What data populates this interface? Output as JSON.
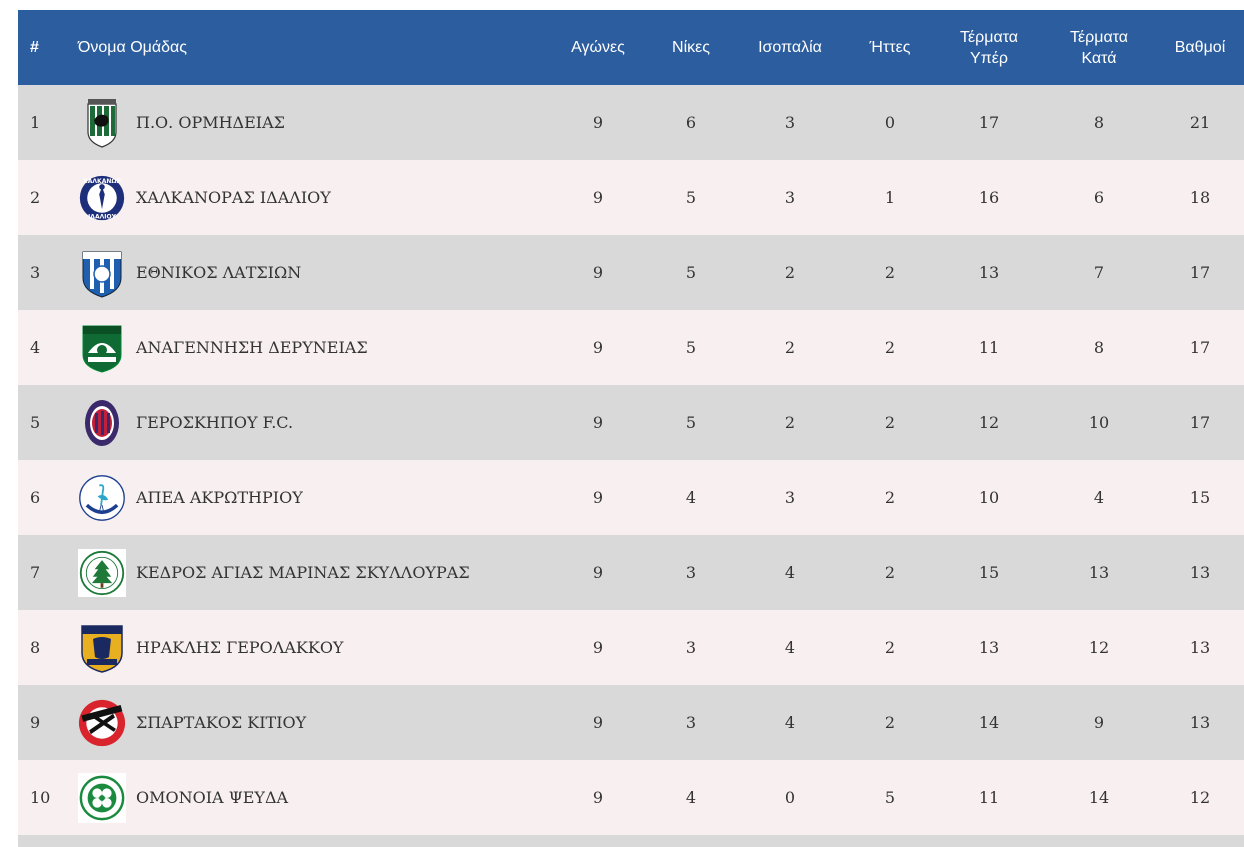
{
  "table": {
    "headers": {
      "rank": "#",
      "team": "Όνομα Ομάδας",
      "played": "Αγώνες",
      "wins": "Νίκες",
      "draws": "Ισοπαλία",
      "losses": "Ήττες",
      "goals_for_line1": "Τέρματα",
      "goals_for_line2": "Υπέρ",
      "goals_against_line1": "Τέρματα",
      "goals_against_line2": "Κατά",
      "points": "Βαθμοί"
    },
    "rows": [
      {
        "rank": "1",
        "team": "Π.Ο. ΟΡΜΗΔΕΙΑΣ",
        "logo": "ormideia-crest-icon",
        "played": "9",
        "wins": "6",
        "draws": "3",
        "losses": "0",
        "gf": "17",
        "ga": "8",
        "pts": "21"
      },
      {
        "rank": "2",
        "team": "ΧΑΛΚΑΝΟΡΑΣ ΙΔΑΛΙΟΥ",
        "logo": "chalkanoras-crest-icon",
        "logo_text_top": "ΧΑΛΚΑΝΩΡ",
        "logo_text_bottom": "ΙΔΑΛΙΟΥ",
        "played": "9",
        "wins": "5",
        "draws": "3",
        "losses": "1",
        "gf": "16",
        "ga": "6",
        "pts": "18"
      },
      {
        "rank": "3",
        "team": "ΕΘΝΙΚΟΣ ΛΑΤΣΙΩΝ",
        "logo": "ethnikos-crest-icon",
        "played": "9",
        "wins": "5",
        "draws": "2",
        "losses": "2",
        "gf": "13",
        "ga": "7",
        "pts": "17"
      },
      {
        "rank": "4",
        "team": "ΑΝΑΓΕΝΝΗΣΗ ΔΕΡΥΝΕΙΑΣ",
        "logo": "anagennisi-crest-icon",
        "played": "9",
        "wins": "5",
        "draws": "2",
        "losses": "2",
        "gf": "11",
        "ga": "8",
        "pts": "17"
      },
      {
        "rank": "5",
        "team": "ΓΕΡΟΣΚΗΠΟΥ F.C.",
        "logo": "geroskipou-crest-icon",
        "played": "9",
        "wins": "5",
        "draws": "2",
        "losses": "2",
        "gf": "12",
        "ga": "10",
        "pts": "17"
      },
      {
        "rank": "6",
        "team": "ΑΠΕΑ ΑΚΡΩΤΗΡΙΟΥ",
        "logo": "apea-crest-icon",
        "played": "9",
        "wins": "4",
        "draws": "3",
        "losses": "2",
        "gf": "10",
        "ga": "4",
        "pts": "15"
      },
      {
        "rank": "7",
        "team": "ΚΕΔΡΟΣ ΑΓΙΑΣ ΜΑΡΙΝΑΣ ΣΚΥΛΛΟΥΡΑΣ",
        "logo": "kedros-crest-icon",
        "played": "9",
        "wins": "3",
        "draws": "4",
        "losses": "2",
        "gf": "15",
        "ga": "13",
        "pts": "13"
      },
      {
        "rank": "8",
        "team": "ΗΡΑΚΛΗΣ ΓΕΡΟΛΑΚΚΟΥ",
        "logo": "iraklis-crest-icon",
        "played": "9",
        "wins": "3",
        "draws": "4",
        "losses": "2",
        "gf": "13",
        "ga": "12",
        "pts": "13"
      },
      {
        "rank": "9",
        "team": "ΣΠΑΡΤΑΚΟΣ ΚΙΤΙΟΥ",
        "logo": "spartakos-crest-icon",
        "played": "9",
        "wins": "3",
        "draws": "4",
        "losses": "2",
        "gf": "14",
        "ga": "9",
        "pts": "13"
      },
      {
        "rank": "10",
        "team": "ΟΜΟΝΟΙΑ ΨΕΥΔΑ",
        "logo": "omonoia-crest-icon",
        "played": "9",
        "wins": "4",
        "draws": "0",
        "losses": "5",
        "gf": "11",
        "ga": "14",
        "pts": "12"
      }
    ]
  },
  "colors": {
    "header_bg": "#2c5d9f",
    "row_odd": "#d9d9d9",
    "row_even": "#f8eff0"
  }
}
